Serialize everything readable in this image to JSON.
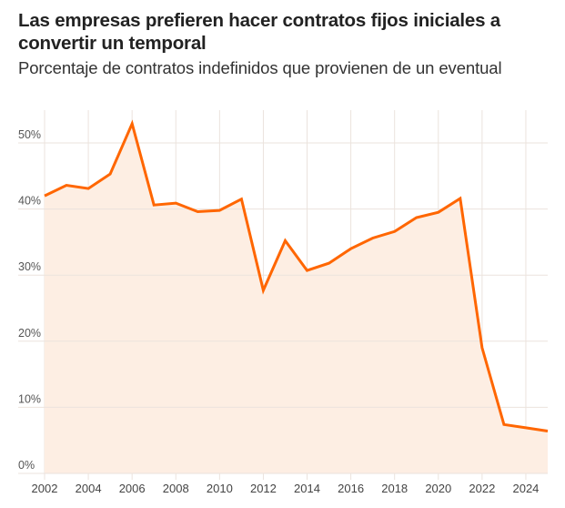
{
  "header": {
    "title": "Las empresas prefieren hacer contratos fijos iniciales a convertir un temporal",
    "subtitle": "Porcentaje de contratos indefinidos que provienen de un eventual"
  },
  "colors": {
    "line": "#ff6600",
    "area": "#fdeee3",
    "grid": "#ebe3dd"
  },
  "chart_data": {
    "type": "area",
    "title": "Las empresas prefieren hacer contratos fijos iniciales a convertir un temporal",
    "subtitle": "Porcentaje de contratos indefinidos que provienen de un eventual",
    "xlabel": "",
    "ylabel": "",
    "x": [
      2002,
      2003,
      2004,
      2005,
      2006,
      2007,
      2008,
      2009,
      2010,
      2011,
      2012,
      2013,
      2014,
      2015,
      2016,
      2017,
      2018,
      2019,
      2020,
      2021,
      2022,
      2023,
      2024,
      2025
    ],
    "series": [
      {
        "name": "Porcentaje de contratos indefinidos que provienen de un eventual",
        "values": [
          42.0,
          43.6,
          43.1,
          45.3,
          52.9,
          40.6,
          40.9,
          39.6,
          39.8,
          41.5,
          27.7,
          35.2,
          30.7,
          31.8,
          34.0,
          35.6,
          36.6,
          38.7,
          39.5,
          41.6,
          19.0,
          7.4,
          6.9,
          6.4
        ]
      }
    ],
    "xlim": [
      2002,
      2025
    ],
    "ylim": [
      0,
      55
    ],
    "xticks": [
      2002,
      2004,
      2006,
      2008,
      2010,
      2012,
      2014,
      2016,
      2018,
      2020,
      2022,
      2024
    ],
    "xtick_labels": [
      "2002",
      "2004",
      "2006",
      "2008",
      "2010",
      "2012",
      "2014",
      "2016",
      "2018",
      "2020",
      "2022",
      "2024"
    ],
    "yticks": [
      0,
      10,
      20,
      30,
      40,
      50
    ],
    "ytick_labels": [
      "0%",
      "10%",
      "20%",
      "30%",
      "40%",
      "50%"
    ],
    "grid": true,
    "legend": "none"
  }
}
